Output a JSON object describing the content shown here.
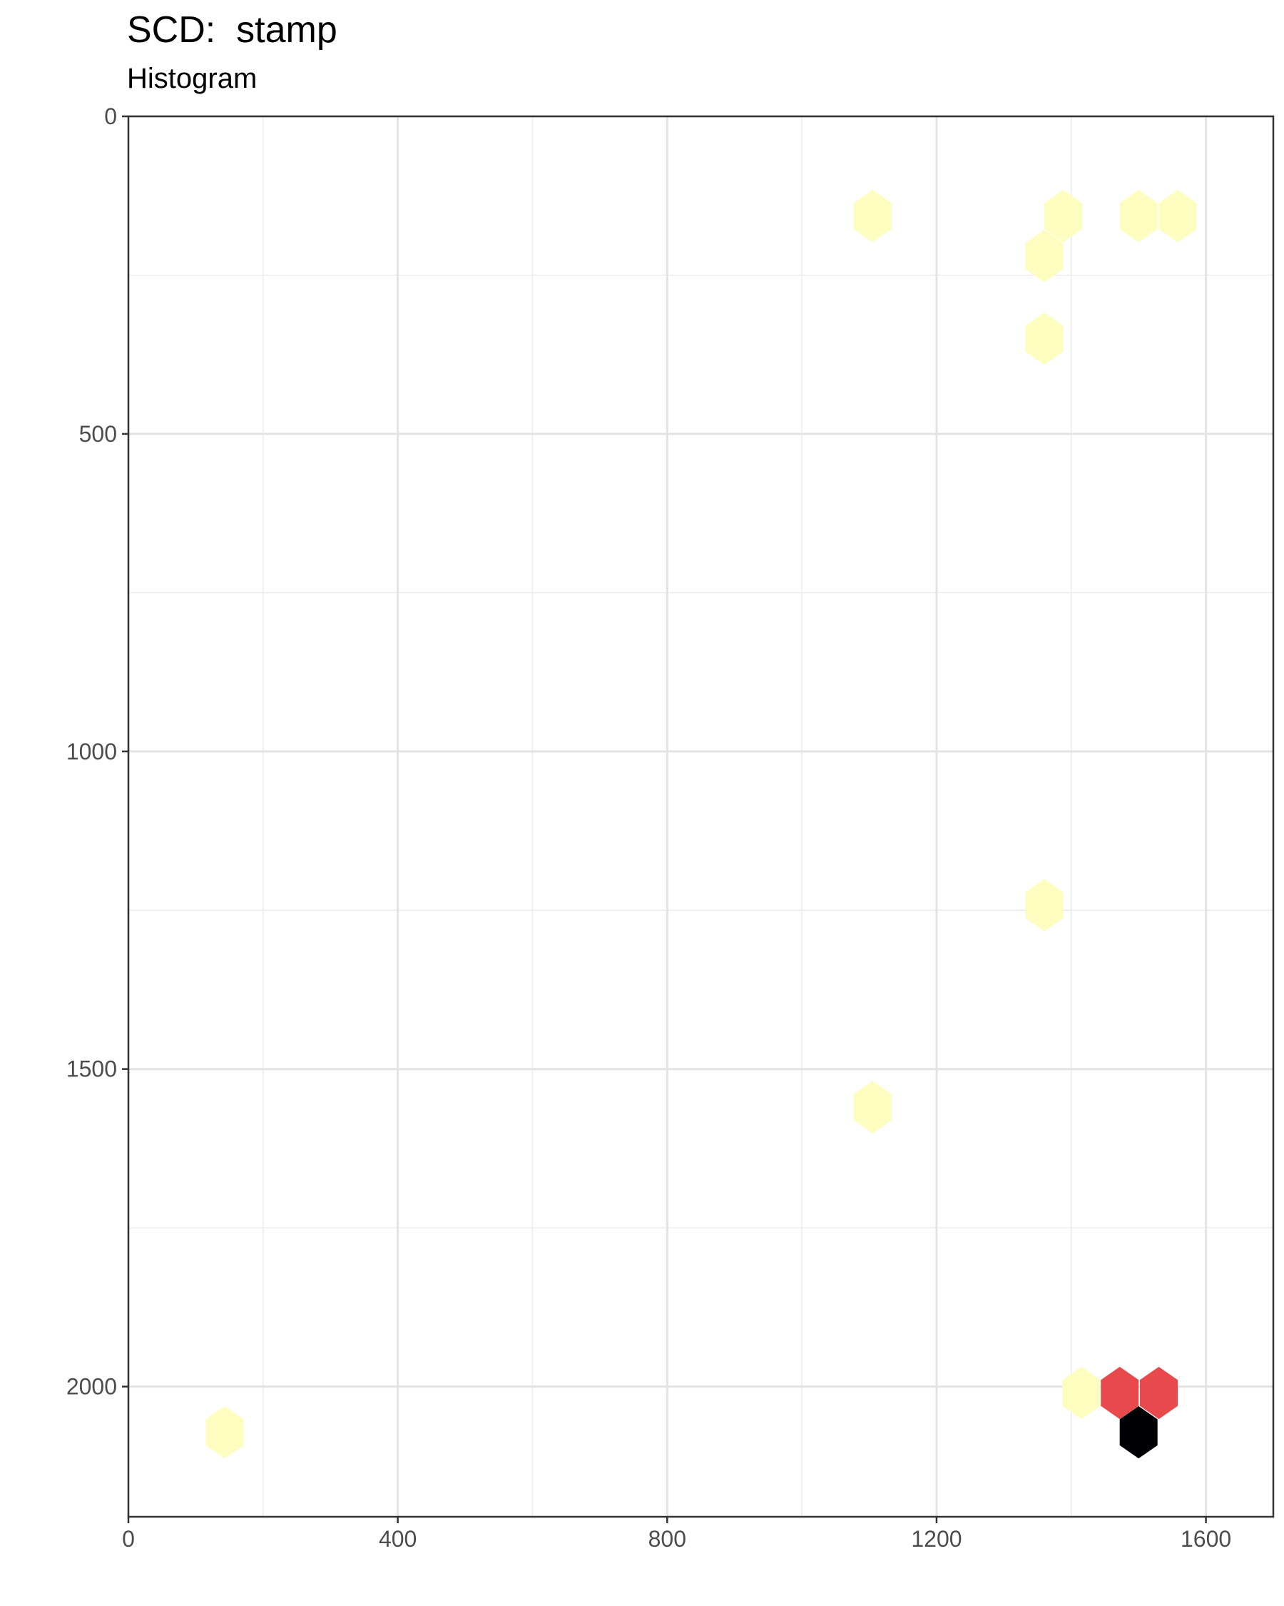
{
  "chart_data": {
    "type": "hexbin",
    "title": "SCD:  stamp",
    "subtitle": "Histogram",
    "xlabel": "",
    "ylabel": "",
    "xlim": [
      0,
      1700
    ],
    "ylim": [
      0,
      2205
    ],
    "y_reversed": true,
    "x_ticks": [
      0,
      400,
      800,
      1200,
      1600
    ],
    "y_ticks": [
      0,
      500,
      1000,
      1500,
      2000
    ],
    "grid": true,
    "colors": {
      "low": "#fcfdbf",
      "mid": "#e8494d",
      "high": "#000004"
    },
    "bins": [
      {
        "x": 1105,
        "y": 157,
        "level": "low"
      },
      {
        "x": 1388,
        "y": 157,
        "level": "low"
      },
      {
        "x": 1360,
        "y": 220,
        "level": "low"
      },
      {
        "x": 1500,
        "y": 157,
        "level": "low"
      },
      {
        "x": 1558,
        "y": 157,
        "level": "low"
      },
      {
        "x": 1360,
        "y": 350,
        "level": "low"
      },
      {
        "x": 1360,
        "y": 1242,
        "level": "low"
      },
      {
        "x": 1105,
        "y": 1560,
        "level": "low"
      },
      {
        "x": 1415,
        "y": 2010,
        "level": "low"
      },
      {
        "x": 1472,
        "y": 2010,
        "level": "mid"
      },
      {
        "x": 1530,
        "y": 2010,
        "level": "mid"
      },
      {
        "x": 1500,
        "y": 2072,
        "level": "high"
      },
      {
        "x": 143,
        "y": 2072,
        "level": "low"
      }
    ]
  }
}
